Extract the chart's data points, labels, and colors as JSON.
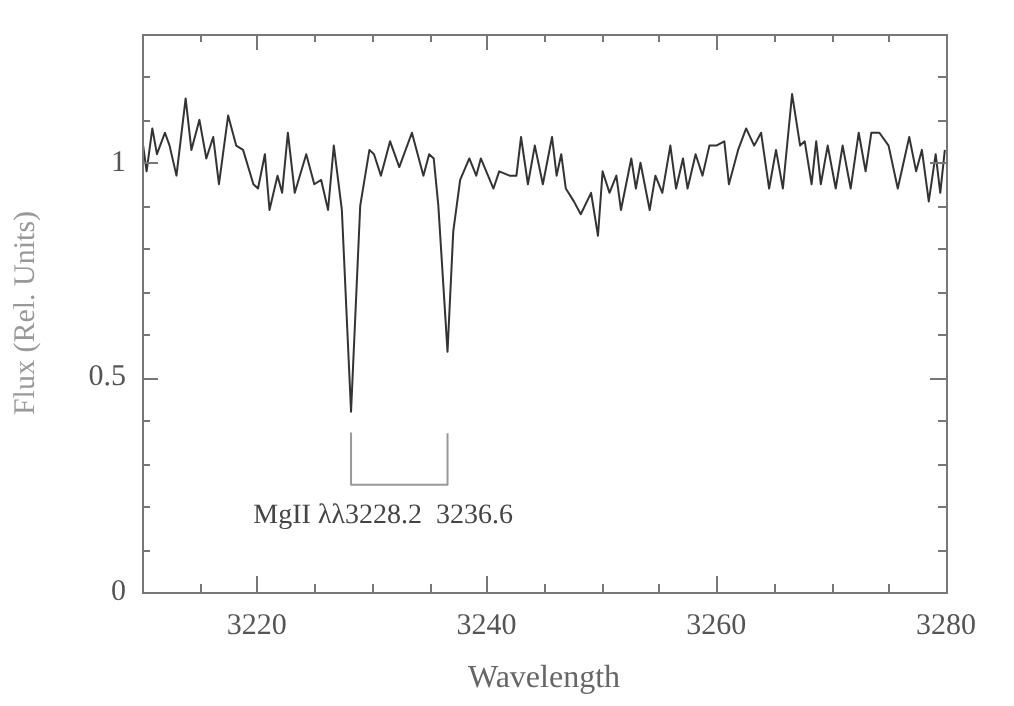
{
  "chart_data": {
    "type": "line",
    "xlabel": "Wavelength",
    "ylabel": "Flux (Rel. Units)",
    "xlim": [
      3210,
      3280
    ],
    "ylim": [
      0,
      1.3
    ],
    "xticks": [
      {
        "value": 3210,
        "label": null
      },
      {
        "value": 3215,
        "label": null
      },
      3220,
      {
        "value": 3225,
        "label": null
      },
      {
        "value": 3230,
        "label": null
      },
      {
        "value": 3235,
        "label": null
      },
      3240,
      {
        "value": 3245,
        "label": null
      },
      {
        "value": 3250,
        "label": null
      },
      {
        "value": 3255,
        "label": null
      },
      3260,
      {
        "value": 3265,
        "label": null
      },
      {
        "value": 3270,
        "label": null
      },
      {
        "value": 3275,
        "label": null
      },
      3280
    ],
    "yticks": [
      0,
      {
        "value": 0.1,
        "label": null
      },
      {
        "value": 0.2,
        "label": null
      },
      {
        "value": 0.3,
        "label": null
      },
      {
        "value": 0.4,
        "label": null
      },
      0.5,
      {
        "value": 0.6,
        "label": null
      },
      {
        "value": 0.7,
        "label": null
      },
      {
        "value": 0.8,
        "label": null
      },
      {
        "value": 0.9,
        "label": null
      },
      1,
      {
        "value": 1.1,
        "label": null
      },
      {
        "value": 1.2,
        "label": null
      }
    ],
    "grid": false,
    "legend": false,
    "marker": "none",
    "line_style": "solid",
    "annotations": [
      "MgII λλ3228.2  3236.6"
    ],
    "series": [
      {
        "type": "line",
        "color": "#333333",
        "x": [
          3210.1,
          3210.4,
          3210.9,
          3211.3,
          3212.0,
          3212.4,
          3213.0,
          3213.8,
          3214.3,
          3215.0,
          3215.6,
          3216.2,
          3216.7,
          3217.5,
          3218.2,
          3218.8,
          3219.7,
          3220.1,
          3220.7,
          3221.1,
          3221.8,
          3222.2,
          3222.7,
          3223.3,
          3224.3,
          3225.0,
          3225.6,
          3226.2,
          3226.7,
          3227.4,
          3228.2,
          3229.0,
          3229.8,
          3230.2,
          3230.8,
          3231.6,
          3232.4,
          3233.5,
          3234.5,
          3235.0,
          3235.4,
          3235.8,
          3236.6,
          3237.1,
          3237.7,
          3238.5,
          3239.1,
          3239.5,
          3240.6,
          3241.1,
          3242.0,
          3242.6,
          3243.0,
          3243.6,
          3244.2,
          3244.9,
          3245.7,
          3246.1,
          3246.5,
          3246.9,
          3247.6,
          3248.2,
          3249.1,
          3249.7,
          3250.1,
          3250.7,
          3251.3,
          3251.7,
          3252.6,
          3253.0,
          3253.4,
          3254.2,
          3254.7,
          3255.3,
          3256.0,
          3256.5,
          3257.1,
          3257.5,
          3258.2,
          3258.8,
          3259.4,
          3260.0,
          3260.7,
          3261.1,
          3261.9,
          3262.6,
          3263.3,
          3263.9,
          3264.6,
          3265.2,
          3265.8,
          3266.6,
          3267.3,
          3267.7,
          3268.3,
          3268.7,
          3269.1,
          3269.7,
          3270.4,
          3271.0,
          3271.7,
          3272.4,
          3273.0,
          3273.5,
          3274.2,
          3275.0,
          3275.8,
          3276.8,
          3277.4,
          3277.9,
          3278.5,
          3279.1,
          3279.5,
          3279.9
        ],
        "values": [
          1.04,
          0.98,
          1.08,
          1.02,
          1.07,
          1.04,
          0.97,
          1.15,
          1.03,
          1.1,
          1.01,
          1.06,
          0.95,
          1.11,
          1.04,
          1.03,
          0.95,
          0.94,
          1.02,
          0.89,
          0.97,
          0.93,
          1.07,
          0.93,
          1.02,
          0.95,
          0.96,
          0.89,
          1.04,
          0.89,
          0.42,
          0.9,
          1.03,
          1.02,
          0.97,
          1.05,
          0.99,
          1.07,
          0.97,
          1.02,
          1.01,
          0.9,
          0.56,
          0.84,
          0.96,
          1.01,
          0.97,
          1.01,
          0.94,
          0.98,
          0.97,
          0.97,
          1.06,
          0.95,
          1.04,
          0.95,
          1.06,
          0.97,
          1.02,
          0.94,
          0.91,
          0.88,
          0.93,
          0.83,
          0.98,
          0.93,
          0.97,
          0.89,
          1.01,
          0.94,
          1.0,
          0.89,
          0.97,
          0.93,
          1.04,
          0.94,
          1.01,
          0.94,
          1.02,
          0.97,
          1.04,
          1.04,
          1.05,
          0.95,
          1.03,
          1.08,
          1.04,
          1.07,
          0.94,
          1.03,
          0.94,
          1.16,
          1.04,
          1.05,
          0.95,
          1.05,
          0.95,
          1.04,
          0.94,
          1.04,
          0.94,
          1.07,
          0.98,
          1.07,
          1.07,
          1.04,
          0.94,
          1.06,
          0.98,
          1.03,
          0.91,
          1.02,
          0.93,
          1.03
        ]
      },
      {
        "type": "line",
        "color": "#999999",
        "x": [
          3228.2,
          3228.2,
          3236.6,
          3236.6
        ],
        "values": [
          0.37,
          0.25,
          0.25,
          0.37
        ]
      }
    ]
  }
}
